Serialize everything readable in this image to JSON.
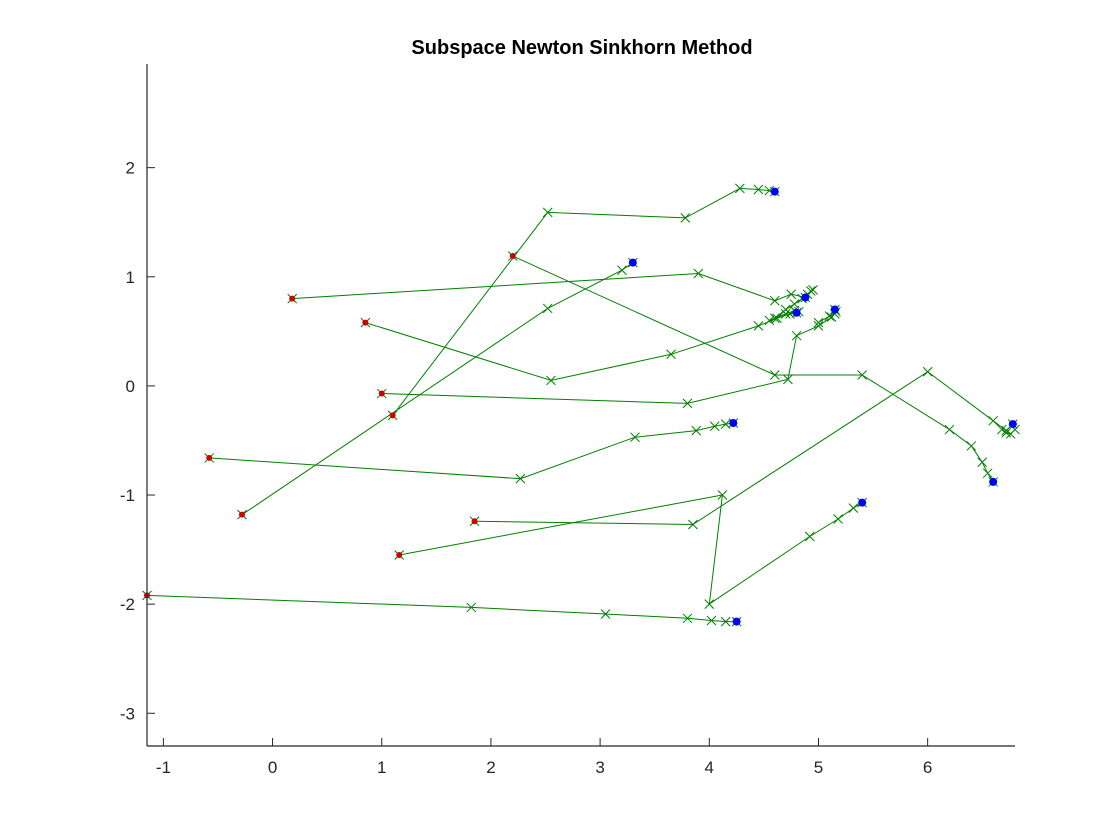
{
  "chart_data": {
    "type": "line",
    "title": "Subspace Newton Sinkhorn Method",
    "xlabel": "",
    "ylabel": "",
    "xlim": [
      -1.15,
      6.8
    ],
    "ylim": [
      -3.3,
      2.95
    ],
    "xticks": [
      -1,
      0,
      1,
      2,
      3,
      4,
      5,
      6
    ],
    "yticks": [
      -3,
      -2,
      -1,
      0,
      1,
      2
    ],
    "grid": false,
    "colors": {
      "path": "#008000",
      "start": "#d00000",
      "end": "#0000ff",
      "axis": "#262626"
    },
    "series": [
      {
        "points": [
          [
            0.18,
            0.8
          ],
          [
            3.9,
            1.03
          ],
          [
            4.6,
            0.78
          ],
          [
            4.75,
            0.84
          ],
          [
            4.88,
            0.81
          ]
        ]
      },
      {
        "points": [
          [
            0.85,
            0.58
          ],
          [
            2.55,
            0.05
          ],
          [
            3.65,
            0.29
          ],
          [
            4.45,
            0.55
          ],
          [
            4.62,
            0.62
          ],
          [
            4.74,
            0.66
          ],
          [
            4.8,
            0.67
          ]
        ]
      },
      {
        "points": [
          [
            2.2,
            1.19
          ],
          [
            4.6,
            0.1
          ],
          [
            5.4,
            0.1
          ],
          [
            6.2,
            -0.4
          ],
          [
            6.4,
            -0.55
          ],
          [
            6.5,
            -0.7
          ],
          [
            6.55,
            -0.8
          ],
          [
            6.6,
            -0.88
          ]
        ]
      },
      {
        "points": [
          [
            1.1,
            -0.27
          ],
          [
            2.52,
            1.59
          ],
          [
            3.78,
            1.54
          ],
          [
            4.28,
            1.81
          ],
          [
            4.45,
            1.8
          ],
          [
            4.55,
            1.79
          ],
          [
            4.6,
            1.78
          ]
        ]
      },
      {
        "points": [
          [
            -0.28,
            -1.18
          ],
          [
            2.52,
            0.71
          ],
          [
            3.2,
            1.06
          ],
          [
            3.3,
            1.13
          ]
        ]
      },
      {
        "points": [
          [
            1.0,
            -0.07
          ],
          [
            3.8,
            -0.16
          ],
          [
            4.72,
            0.06
          ],
          [
            4.8,
            0.46
          ],
          [
            5.0,
            0.55
          ],
          [
            5.12,
            0.63
          ],
          [
            5.15,
            0.7
          ]
        ]
      },
      {
        "points": [
          [
            -0.58,
            -0.66
          ],
          [
            2.27,
            -0.85
          ],
          [
            3.32,
            -0.47
          ],
          [
            3.88,
            -0.41
          ],
          [
            4.05,
            -0.37
          ],
          [
            4.15,
            -0.35
          ],
          [
            4.22,
            -0.34
          ]
        ]
      },
      {
        "points": [
          [
            1.16,
            -1.55
          ],
          [
            4.12,
            -1.0
          ],
          [
            4.0,
            -2.0
          ],
          [
            4.92,
            -1.38
          ],
          [
            5.18,
            -1.22
          ],
          [
            5.32,
            -1.12
          ],
          [
            5.4,
            -1.07
          ]
        ]
      },
      {
        "points": [
          [
            1.85,
            -1.24
          ],
          [
            3.85,
            -1.27
          ],
          [
            6.0,
            0.13
          ],
          [
            6.6,
            -0.32
          ],
          [
            6.72,
            -0.41
          ],
          [
            6.78,
            -0.35
          ]
        ]
      },
      {
        "points": [
          [
            -1.15,
            -1.92
          ],
          [
            1.82,
            -2.03
          ],
          [
            3.05,
            -2.09
          ],
          [
            3.8,
            -2.13
          ],
          [
            4.02,
            -2.15
          ],
          [
            4.15,
            -2.16
          ],
          [
            4.25,
            -2.16
          ]
        ]
      },
      {
        "points": [
          [
            4.6,
            0.62
          ],
          [
            4.7,
            0.7
          ],
          [
            4.78,
            0.75
          ],
          [
            4.85,
            0.8
          ],
          [
            4.9,
            0.84
          ],
          [
            4.93,
            0.87
          ],
          [
            4.95,
            0.88
          ]
        ]
      },
      {
        "points": [
          [
            4.55,
            0.6
          ],
          [
            4.7,
            0.66
          ],
          [
            4.78,
            0.69
          ],
          [
            4.82,
            0.68
          ]
        ]
      },
      {
        "points": [
          [
            5.0,
            0.58
          ],
          [
            5.1,
            0.64
          ],
          [
            5.15,
            0.66
          ],
          [
            5.16,
            0.68
          ]
        ]
      },
      {
        "points": [
          [
            6.68,
            -0.4
          ],
          [
            6.72,
            -0.43
          ],
          [
            6.76,
            -0.44
          ],
          [
            6.8,
            -0.4
          ]
        ]
      }
    ],
    "start_points": [
      [
        0.18,
        0.8
      ],
      [
        0.85,
        0.58
      ],
      [
        2.2,
        1.19
      ],
      [
        1.1,
        -0.27
      ],
      [
        -0.28,
        -1.18
      ],
      [
        1.0,
        -0.07
      ],
      [
        -0.58,
        -0.66
      ],
      [
        1.16,
        -1.55
      ],
      [
        1.85,
        -1.24
      ],
      [
        -1.15,
        -1.92
      ]
    ],
    "end_points": [
      [
        4.88,
        0.81
      ],
      [
        4.8,
        0.67
      ],
      [
        6.6,
        -0.88
      ],
      [
        4.6,
        1.78
      ],
      [
        3.3,
        1.13
      ],
      [
        5.15,
        0.7
      ],
      [
        4.22,
        -0.34
      ],
      [
        5.4,
        -1.07
      ],
      [
        6.78,
        -0.35
      ],
      [
        4.25,
        -2.16
      ]
    ]
  }
}
